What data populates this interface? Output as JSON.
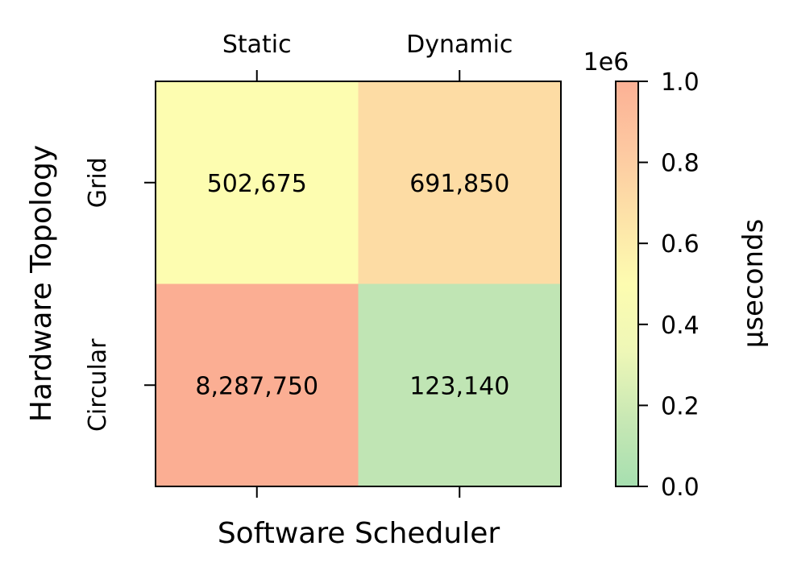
{
  "chart_data": {
    "type": "heatmap",
    "x_categories": [
      "Static",
      "Dynamic"
    ],
    "y_categories": [
      "Grid",
      "Circular"
    ],
    "values": [
      [
        502675,
        691850
      ],
      [
        8287750,
        123140
      ]
    ],
    "cell_labels": [
      [
        "502,675",
        "691,850"
      ],
      [
        "8,287,750",
        "123,140"
      ]
    ],
    "xlabel": "Software Scheduler",
    "ylabel": "Hardware Topology",
    "colorbar": {
      "label": "μseconds",
      "range": [
        0.0,
        1.0
      ],
      "scale_label": "1e6",
      "ticks": [
        "0.0",
        "0.2",
        "0.4",
        "0.6",
        "0.8",
        "1.0"
      ],
      "colormap_stops": [
        "#a6dfb0",
        "#c8e8b4",
        "#eef7b7",
        "#fdfcb0",
        "#fde2a8",
        "#fdc8a1",
        "#fcb195"
      ]
    },
    "cell_colors": [
      [
        "#fdfdb0",
        "#fddca4"
      ],
      [
        "#fbae93",
        "#c0e5b4"
      ]
    ],
    "x_tick_position": "top",
    "grid": false
  }
}
